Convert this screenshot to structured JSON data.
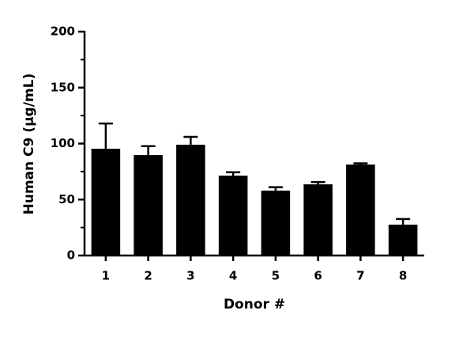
{
  "chart_data": {
    "type": "bar",
    "x_label": "Donor #",
    "y_label": "Human C9 (µg/mL)",
    "categories": [
      "1",
      "2",
      "3",
      "4",
      "5",
      "6",
      "7",
      "8"
    ],
    "values": [
      95.4,
      89.7,
      99,
      71.4,
      58,
      63.6,
      81.3,
      27.6
    ],
    "errors": [
      22.5,
      8,
      7,
      3,
      3,
      2,
      1,
      5
    ],
    "color": "#000000",
    "ylim": [
      0,
      200
    ],
    "yticks": [
      0,
      50,
      100,
      150,
      200
    ],
    "minor_yticks": [
      25,
      75,
      125,
      175
    ]
  }
}
